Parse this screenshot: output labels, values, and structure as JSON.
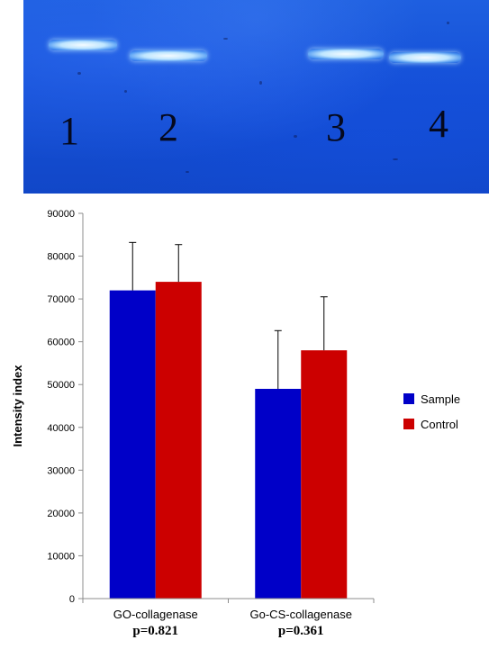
{
  "gel": {
    "lanes": [
      "1",
      "2",
      "3",
      "4"
    ],
    "band_color": "#e6f6ff",
    "background_color": "#1a55da"
  },
  "chart_data": {
    "type": "bar",
    "title": "",
    "xlabel": "",
    "ylabel": "Intensity index",
    "ylim": [
      0,
      90000
    ],
    "yticks": [
      "0",
      "10000",
      "20000",
      "30000",
      "40000",
      "50000",
      "60000",
      "70000",
      "80000",
      "90000"
    ],
    "grid": false,
    "legend_position": "right",
    "categories": [
      "GO-collagenase",
      "Go-CS-collagenase"
    ],
    "annotations": [
      "p=0.821",
      "p=0.361"
    ],
    "series": [
      {
        "name": "Sample",
        "color": "#0000c8",
        "values": [
          72000,
          49000
        ],
        "errors": [
          11200,
          13600
        ]
      },
      {
        "name": "Control",
        "color": "#cc0000",
        "values": [
          74000,
          58000
        ],
        "errors": [
          8700,
          12500
        ]
      }
    ]
  }
}
